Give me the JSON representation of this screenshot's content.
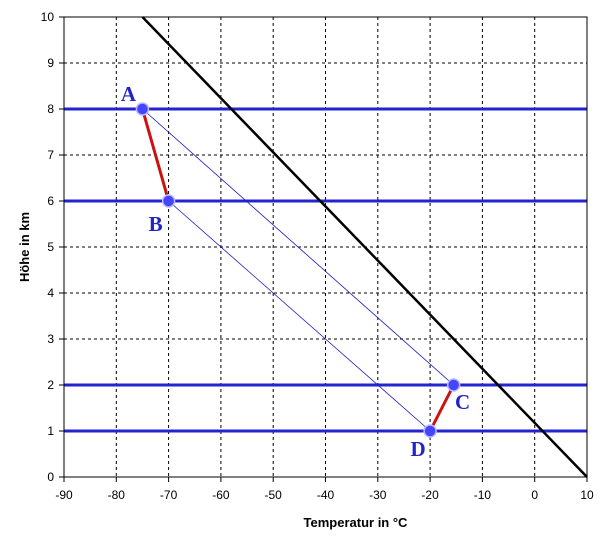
{
  "chart_data": {
    "type": "line",
    "xlabel": "Temperatur in °C",
    "ylabel": "Höhe in km",
    "xlim": [
      -90,
      10
    ],
    "ylim": [
      0,
      10
    ],
    "x_ticks": [
      "-90",
      "-80",
      "-70",
      "-60",
      "-50",
      "-40",
      "-30",
      "-20",
      "-10",
      "0",
      "10"
    ],
    "y_ticks": [
      "0",
      "1",
      "2",
      "3",
      "4",
      "5",
      "6",
      "7",
      "8",
      "9",
      "10"
    ],
    "grid": true,
    "colors": {
      "reference_line": "#000000",
      "levels": "#2323d2",
      "segments": "#cc1111",
      "points": "#4545ff",
      "labels": "#2323c8",
      "thin": "#2020c0"
    },
    "reference_line": {
      "x": [
        -75,
        10
      ],
      "y": [
        10,
        0
      ]
    },
    "levels": [
      8,
      6,
      2,
      1
    ],
    "points": [
      {
        "label": "A",
        "x": -75,
        "y": 8
      },
      {
        "label": "B",
        "x": -70,
        "y": 6
      },
      {
        "label": "C",
        "x": -15.5,
        "y": 2
      },
      {
        "label": "D",
        "x": -20,
        "y": 1
      }
    ],
    "segments": [
      [
        "A",
        "B"
      ],
      [
        "C",
        "D"
      ]
    ],
    "thin_lines": [
      [
        "A",
        "C"
      ],
      [
        "B",
        "D"
      ]
    ]
  }
}
